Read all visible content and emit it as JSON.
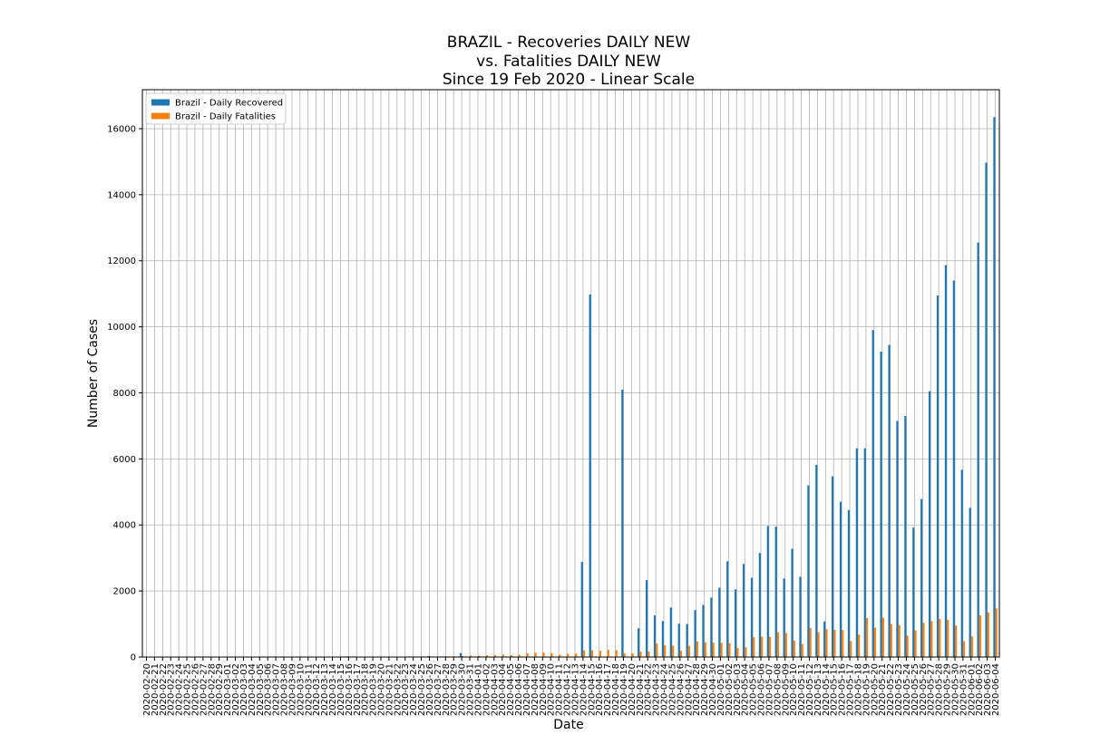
{
  "chart_data": {
    "type": "bar",
    "title": [
      "BRAZIL - Recoveries DAILY NEW",
      "vs. Fatalities DAILY NEW",
      "Since 19 Feb 2020 - Linear Scale"
    ],
    "x_label": "Date",
    "y_label": "Number of Cases",
    "categories": [
      "2020-02-20",
      "2020-02-21",
      "2020-02-22",
      "2020-02-23",
      "2020-02-24",
      "2020-02-25",
      "2020-02-26",
      "2020-02-27",
      "2020-02-28",
      "2020-02-29",
      "2020-03-01",
      "2020-03-02",
      "2020-03-03",
      "2020-03-04",
      "2020-03-05",
      "2020-03-06",
      "2020-03-07",
      "2020-03-08",
      "2020-03-09",
      "2020-03-10",
      "2020-03-11",
      "2020-03-12",
      "2020-03-13",
      "2020-03-14",
      "2020-03-15",
      "2020-03-16",
      "2020-03-17",
      "2020-03-18",
      "2020-03-19",
      "2020-03-20",
      "2020-03-21",
      "2020-03-22",
      "2020-03-23",
      "2020-03-24",
      "2020-03-25",
      "2020-03-26",
      "2020-03-27",
      "2020-03-28",
      "2020-03-29",
      "2020-03-30",
      "2020-03-31",
      "2020-04-01",
      "2020-04-02",
      "2020-04-03",
      "2020-04-04",
      "2020-04-05",
      "2020-04-06",
      "2020-04-07",
      "2020-04-08",
      "2020-04-09",
      "2020-04-10",
      "2020-04-11",
      "2020-04-12",
      "2020-04-13",
      "2020-04-14",
      "2020-04-15",
      "2020-04-16",
      "2020-04-17",
      "2020-04-18",
      "2020-04-19",
      "2020-04-20",
      "2020-04-21",
      "2020-04-22",
      "2020-04-23",
      "2020-04-24",
      "2020-04-25",
      "2020-04-26",
      "2020-04-27",
      "2020-04-28",
      "2020-04-29",
      "2020-04-30",
      "2020-05-01",
      "2020-05-02",
      "2020-05-03",
      "2020-05-04",
      "2020-05-05",
      "2020-05-06",
      "2020-05-07",
      "2020-05-08",
      "2020-05-09",
      "2020-05-10",
      "2020-05-11",
      "2020-05-12",
      "2020-05-13",
      "2020-05-14",
      "2020-05-15",
      "2020-05-16",
      "2020-05-17",
      "2020-05-18",
      "2020-05-19",
      "2020-05-20",
      "2020-05-21",
      "2020-05-22",
      "2020-05-23",
      "2020-05-24",
      "2020-05-25",
      "2020-05-26",
      "2020-05-27",
      "2020-05-28",
      "2020-05-29",
      "2020-05-30",
      "2020-05-31",
      "2020-06-01",
      "2020-06-02",
      "2020-06-03",
      "2020-06-04"
    ],
    "series": [
      {
        "name": "Brazil - Daily Recovered",
        "color": "#1f77b4",
        "values": [
          0,
          0,
          0,
          0,
          0,
          0,
          0,
          0,
          0,
          0,
          0,
          0,
          0,
          0,
          0,
          0,
          0,
          0,
          0,
          0,
          0,
          0,
          0,
          0,
          0,
          20,
          0,
          0,
          0,
          0,
          0,
          0,
          0,
          0,
          0,
          30,
          0,
          0,
          0,
          120,
          0,
          0,
          0,
          0,
          0,
          0,
          0,
          0,
          0,
          0,
          0,
          0,
          0,
          0,
          2880,
          10980,
          0,
          0,
          0,
          8100,
          0,
          870,
          2330,
          1260,
          1090,
          1500,
          1010,
          1000,
          1420,
          1580,
          1800,
          2100,
          2900,
          2050,
          2820,
          2400,
          3150,
          3970,
          3950,
          2380,
          3280,
          2430,
          5200,
          5820,
          1080,
          5470,
          4700,
          4450,
          6320,
          6320,
          9900,
          9250,
          9450,
          7150,
          7300,
          3920,
          4780,
          8050,
          10950,
          11870,
          11400,
          5670,
          4520,
          12550,
          14970,
          16350
        ]
      },
      {
        "name": "Brazil - Daily Fatalities",
        "color": "#ff7f0e",
        "values": [
          0,
          0,
          0,
          0,
          0,
          0,
          0,
          0,
          0,
          0,
          0,
          0,
          0,
          0,
          0,
          0,
          0,
          0,
          0,
          0,
          0,
          0,
          0,
          0,
          0,
          0,
          1,
          3,
          3,
          5,
          7,
          7,
          9,
          12,
          11,
          20,
          15,
          22,
          22,
          23,
          42,
          40,
          58,
          60,
          73,
          54,
          67,
          114,
          133,
          141,
          115,
          68,
          99,
          105,
          204,
          204,
          188,
          217,
          206,
          115,
          113,
          166,
          165,
          407,
          357,
          346,
          189,
          338,
          474,
          449,
          435,
          428,
          421,
          275,
          296,
          600,
          615,
          610,
          751,
          730,
          496,
          396,
          881,
          749,
          844,
          824,
          816,
          485,
          674,
          1179,
          888,
          1188,
          1001,
          965,
          653,
          807,
          1039,
          1086,
          1156,
          1124,
          956,
          480,
          623,
          1262,
          1349,
          1473
        ]
      }
    ],
    "ylim": [
      0,
      17180
    ],
    "yticks": [
      0,
      2000,
      4000,
      6000,
      8000,
      10000,
      12000,
      14000,
      16000
    ],
    "grid": true,
    "legend": "upper-left"
  }
}
